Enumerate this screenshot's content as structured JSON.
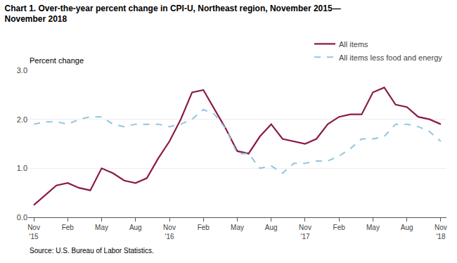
{
  "chart_data": {
    "type": "line",
    "title": "Chart 1. Over-the-year percent change in CPI-U, Northeast region, November 2015—\nNovember 2018",
    "ylabel": "Percent change",
    "annotations": [
      "Source: U.S. Bureau of Labor Statistics."
    ],
    "categories": [
      "Nov\n'15",
      null,
      null,
      "Feb",
      null,
      null,
      "May",
      null,
      null,
      "Aug",
      null,
      null,
      "Nov\n'16",
      null,
      null,
      "Feb",
      null,
      null,
      "May",
      null,
      null,
      "Aug",
      null,
      null,
      "Nov\n'17",
      null,
      null,
      "Feb",
      null,
      null,
      "May",
      null,
      null,
      "Aug",
      null,
      null,
      "Nov\n'18"
    ],
    "series": [
      {
        "name": "All items",
        "color": "#8B1A4A",
        "line_style": "solid",
        "values": [
          0.25,
          0.45,
          0.65,
          0.7,
          0.6,
          0.55,
          1.0,
          0.9,
          0.75,
          0.7,
          0.8,
          1.2,
          1.55,
          2.0,
          2.55,
          2.6,
          2.2,
          1.8,
          1.35,
          1.3,
          1.65,
          1.9,
          1.6,
          1.55,
          1.5,
          1.6,
          1.9,
          2.05,
          2.1,
          2.1,
          2.55,
          2.65,
          2.3,
          2.25,
          2.05,
          2.0,
          1.9
        ]
      },
      {
        "name": "All items less food and energy",
        "color": "#92C5DE",
        "line_style": "dashed",
        "values": [
          1.9,
          1.95,
          1.95,
          1.9,
          2.0,
          2.05,
          2.05,
          1.9,
          1.85,
          1.9,
          1.9,
          1.9,
          1.85,
          1.9,
          2.0,
          2.2,
          2.1,
          1.8,
          1.3,
          1.3,
          1.0,
          1.05,
          0.9,
          1.1,
          1.1,
          1.15,
          1.15,
          1.25,
          1.4,
          1.6,
          1.6,
          1.65,
          1.9,
          1.9,
          1.85,
          1.75,
          1.55
        ]
      }
    ],
    "ylim": [
      0.0,
      3.0
    ],
    "yticks": [
      {
        "value": 0.0,
        "label": "0.0"
      },
      {
        "value": 1.0,
        "label": "1.0"
      },
      {
        "value": 2.0,
        "label": "2.0"
      },
      {
        "value": 3.0,
        "label": "3.0"
      }
    ],
    "grid": true,
    "legend": "upper right"
  }
}
